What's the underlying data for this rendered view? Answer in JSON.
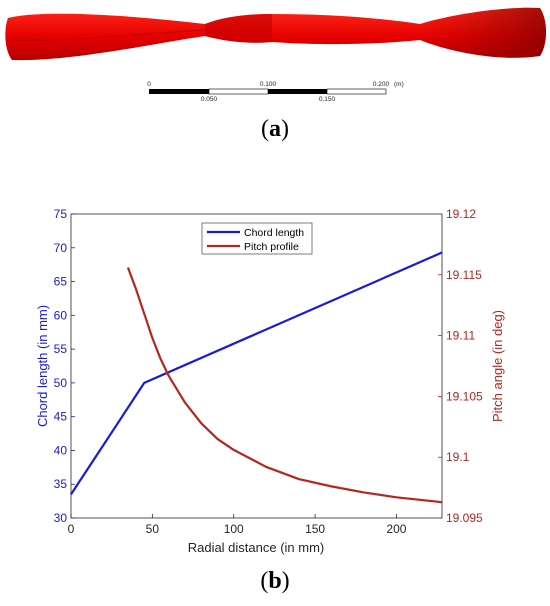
{
  "figure_a": {
    "caption_letter": "a",
    "scale_bar": {
      "upper_labels": [
        "0",
        "0.100",
        "0.200"
      ],
      "lower_labels": [
        "0.050",
        "0.150"
      ],
      "unit": "(m)"
    },
    "blade_color": "#ff0000"
  },
  "figure_b": {
    "caption_letter": "b"
  },
  "chart_data": {
    "type": "line",
    "xlabel": "Radial distance (in mm)",
    "ylabel": "Chord length (in mm)",
    "y2label": "Pitch angle (in deg)",
    "xlim": [
      0,
      228
    ],
    "ylim": [
      30,
      75
    ],
    "y2lim": [
      19.095,
      19.12
    ],
    "x_ticks": [
      0,
      50,
      100,
      150,
      200
    ],
    "y_ticks": [
      30,
      35,
      40,
      45,
      50,
      55,
      60,
      65,
      70,
      75
    ],
    "y2_ticks": [
      "19.095",
      "19.1",
      "19.105",
      "19.11",
      "19.115",
      "19.12"
    ],
    "legend_position": "top-center",
    "grid": false,
    "series": [
      {
        "name": "Chord length",
        "axis": "left",
        "color": "#1a1adb",
        "x": [
          0,
          45,
          228
        ],
        "y": [
          33.5,
          50,
          69.3
        ]
      },
      {
        "name": "Pitch profile",
        "axis": "right",
        "color": "#b5261e",
        "x": [
          35,
          40,
          45,
          50,
          55,
          60,
          70,
          80,
          90,
          100,
          120,
          140,
          160,
          180,
          200,
          228
        ],
        "y": [
          19.1156,
          19.1138,
          19.1118,
          19.1098,
          19.1081,
          19.1067,
          19.1045,
          19.1028,
          19.1015,
          19.1006,
          19.0992,
          19.0982,
          19.0976,
          19.0971,
          19.0967,
          19.0963
        ]
      }
    ]
  }
}
